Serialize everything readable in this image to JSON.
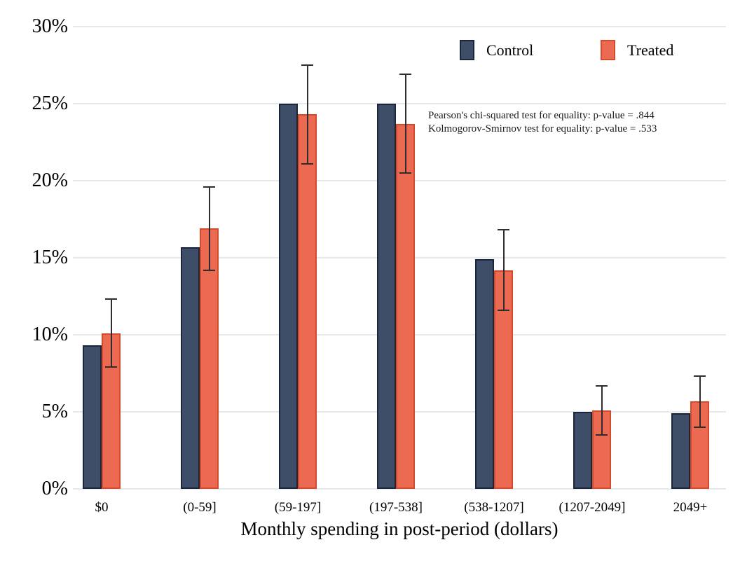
{
  "figure": {
    "background": "#ffffff"
  },
  "legend": {
    "items": [
      {
        "label": "Control",
        "fill": "#3e4d68",
        "border": "#1b263a"
      },
      {
        "label": "Treated",
        "fill": "#ec6a52",
        "border": "#d64a2c"
      }
    ]
  },
  "annotations": {
    "line1": "Pearson's chi-squared test for equality: p-value = .844",
    "line2": "Kolmogorov-Smirnov test for equality: p-value = .533"
  },
  "chart_data": {
    "type": "bar",
    "title": "",
    "xlabel": "Monthly spending in post-period (dollars)",
    "ylabel": "",
    "categories": [
      "$0",
      "(0-59]",
      "(59-197]",
      "(197-538]",
      "(538-1207]",
      "(1207-2049]",
      "2049+"
    ],
    "series": [
      {
        "name": "Control",
        "color": "#3e4d68",
        "border_color": "#1b263a",
        "values": [
          9.3,
          15.7,
          25.0,
          25.0,
          14.9,
          5.0,
          4.9
        ]
      },
      {
        "name": "Treated",
        "color": "#ec6a52",
        "border_color": "#d64a2c",
        "values": [
          10.1,
          16.9,
          24.3,
          23.7,
          14.2,
          5.1,
          5.7
        ],
        "error_low": [
          7.9,
          14.2,
          21.1,
          20.5,
          11.6,
          3.5,
          4.0
        ],
        "error_high": [
          12.3,
          19.6,
          27.5,
          26.9,
          16.8,
          6.7,
          7.3
        ]
      }
    ],
    "ylim": [
      0,
      30
    ],
    "ytick_step": 5,
    "ytick_suffix": "%",
    "grid": true,
    "gridline_color": "#e4e9ec",
    "error_bar_color": "#2e2e2e",
    "legend_position": "top-right-inside"
  }
}
